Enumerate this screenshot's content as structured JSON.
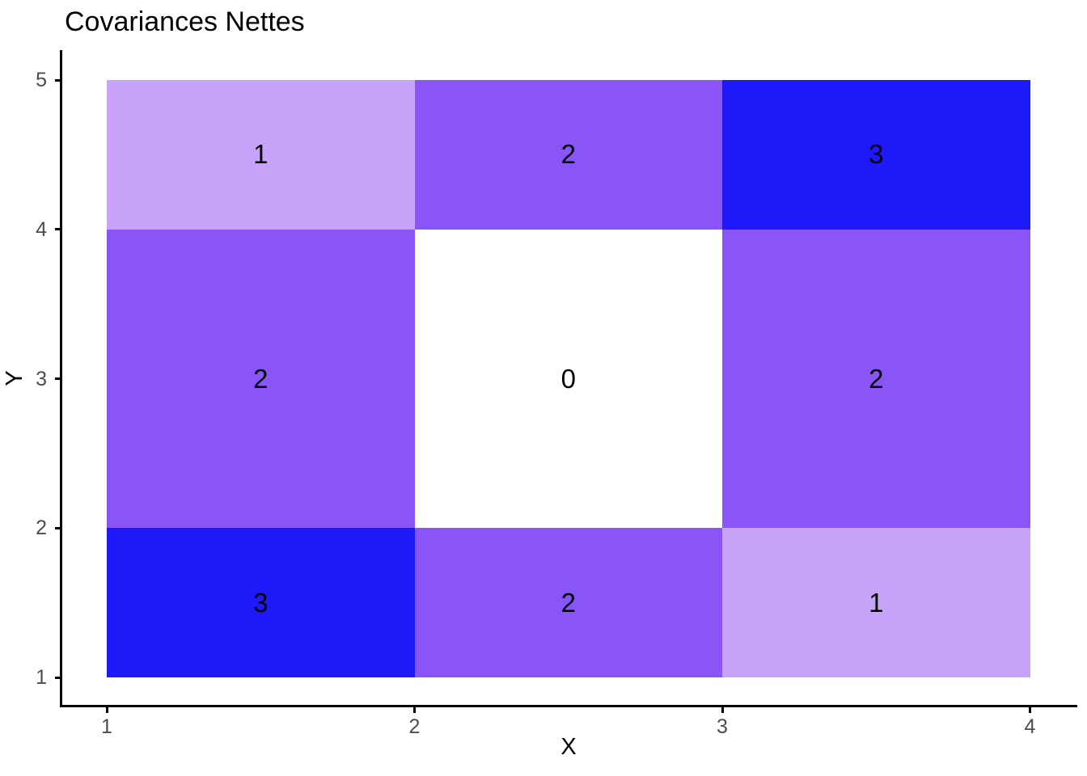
{
  "figure": {
    "background": "#FFFFFF"
  },
  "chart_data": {
    "type": "heatmap",
    "title": "Covariances Nettes",
    "xlabel": "X",
    "ylabel": "Y",
    "x_ticks": [
      1,
      2,
      3,
      4
    ],
    "y_ticks": [
      1,
      2,
      3,
      4,
      5
    ],
    "xlim": [
      0.85,
      4.15
    ],
    "ylim": [
      0.8,
      5.2
    ],
    "grid": false,
    "legend": "none",
    "axis_color": "#000000",
    "tick_label_color": "#4D4D4D",
    "tile_label_color": "#000000",
    "value_colors": {
      "0": "#FFFFFF",
      "1": "#C7A4F9",
      "2": "#8A55F7",
      "3": "#1E19F9"
    },
    "tiles": [
      {
        "xmin": 1,
        "xmax": 2,
        "ymin": 4,
        "ymax": 5,
        "value": 1
      },
      {
        "xmin": 2,
        "xmax": 3,
        "ymin": 4,
        "ymax": 5,
        "value": 2
      },
      {
        "xmin": 3,
        "xmax": 4,
        "ymin": 4,
        "ymax": 5,
        "value": 3
      },
      {
        "xmin": 1,
        "xmax": 2,
        "ymin": 2,
        "ymax": 4,
        "value": 2
      },
      {
        "xmin": 2,
        "xmax": 3,
        "ymin": 2,
        "ymax": 4,
        "value": 0
      },
      {
        "xmin": 3,
        "xmax": 4,
        "ymin": 2,
        "ymax": 4,
        "value": 2
      },
      {
        "xmin": 1,
        "xmax": 2,
        "ymin": 1,
        "ymax": 2,
        "value": 3
      },
      {
        "xmin": 2,
        "xmax": 3,
        "ymin": 1,
        "ymax": 2,
        "value": 2
      },
      {
        "xmin": 3,
        "xmax": 4,
        "ymin": 1,
        "ymax": 2,
        "value": 1
      }
    ]
  }
}
